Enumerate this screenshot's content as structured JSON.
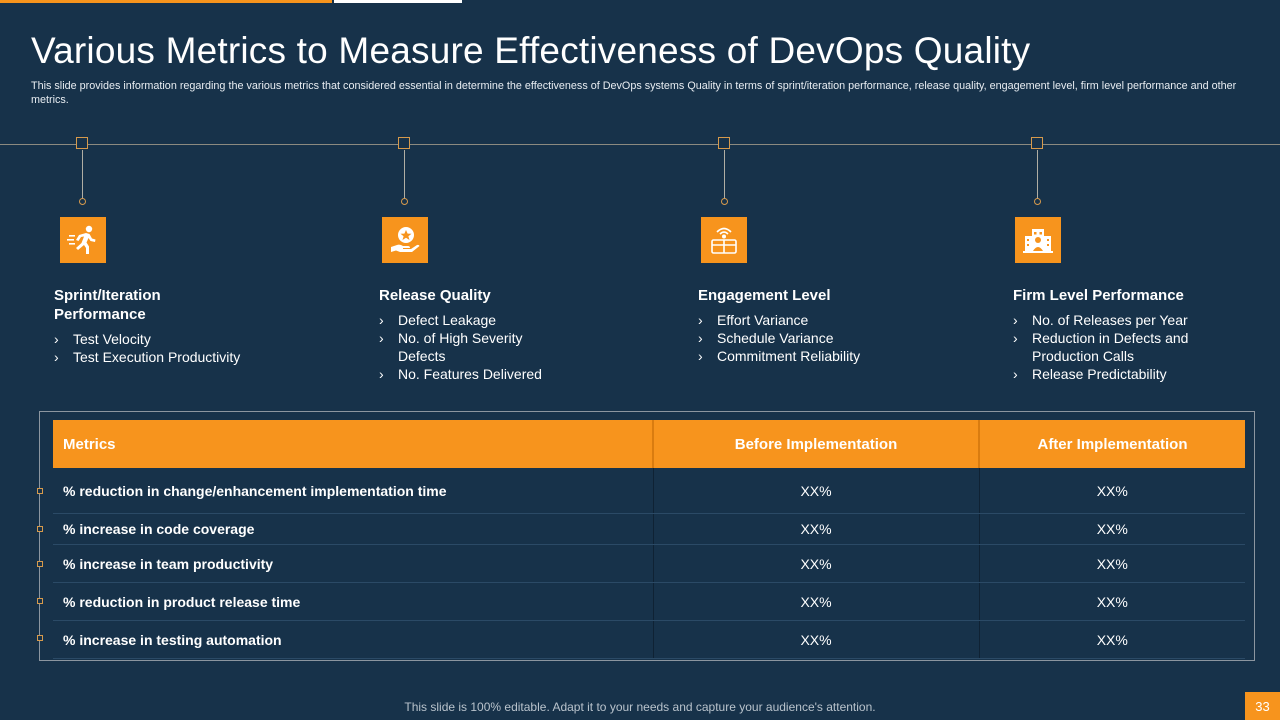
{
  "colors": {
    "background": "#17324a",
    "accent": "#f7941d",
    "text": "#ffffff"
  },
  "title": "Various Metrics to Measure Effectiveness of DevOps Quality",
  "subtitle": "This slide provides information regarding the various metrics that considered essential in determine the effectiveness of DevOps  systems Quality in terms of sprint/iteration performance, release quality, engagement level, firm level performance and other metrics.",
  "columns": [
    {
      "icon": "running-person-icon",
      "title": "Sprint/Iteration Performance",
      "items": [
        "Test Velocity",
        "Test Execution Productivity"
      ]
    },
    {
      "icon": "hand-badge-icon",
      "title": "Release Quality",
      "items": [
        "Defect Leakage",
        "No. of High Severity Defects",
        "No. Features Delivered"
      ]
    },
    {
      "icon": "engagement-broadcast-icon",
      "title": "Engagement Level",
      "items": [
        "Effort Variance",
        "Schedule Variance",
        "Commitment Reliability"
      ]
    },
    {
      "icon": "building-people-icon",
      "title": "Firm Level Performance",
      "items": [
        "No. of Releases per Year",
        "Reduction in Defects and Production Calls",
        "Release Predictability"
      ]
    }
  ],
  "table": {
    "headers": [
      "Metrics",
      "Before Implementation",
      "After Implementation"
    ],
    "rows": [
      [
        "% reduction in change/enhancement implementation time",
        "XX%",
        "XX%"
      ],
      [
        "% increase in code coverage",
        "XX%",
        "XX%"
      ],
      [
        "% increase in team productivity",
        "XX%",
        "XX%"
      ],
      [
        "% reduction in product release time",
        "XX%",
        "XX%"
      ],
      [
        "% increase in testing automation",
        "XX%",
        "XX%"
      ]
    ]
  },
  "footer": "This slide is 100% editable. Adapt it to your needs and capture your audience's attention.",
  "page_number": "33"
}
